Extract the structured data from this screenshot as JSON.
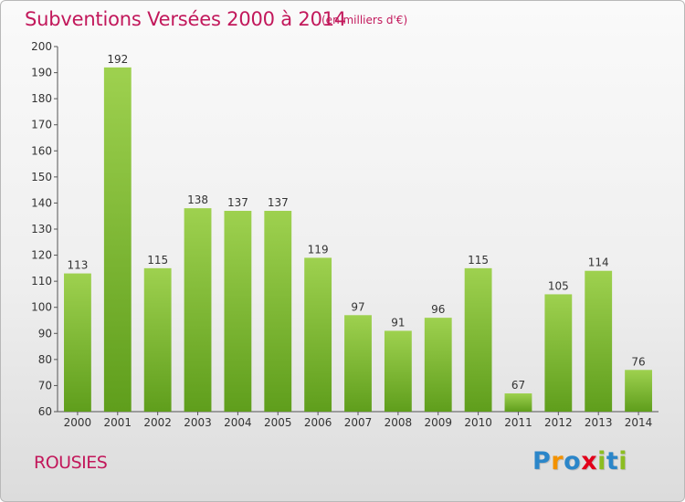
{
  "chart_data": {
    "type": "bar",
    "title": "Subventions Versées 2000 à 2014",
    "subtitle": "(en milliers d'€)",
    "categories": [
      "2000",
      "2001",
      "2002",
      "2003",
      "2004",
      "2005",
      "2006",
      "2007",
      "2008",
      "2009",
      "2010",
      "2011",
      "2012",
      "2013",
      "2014"
    ],
    "values": [
      113,
      192,
      115,
      138,
      137,
      137,
      119,
      97,
      91,
      96,
      115,
      67,
      105,
      114,
      76
    ],
    "ylim": [
      60,
      200
    ],
    "yticks": [
      60,
      70,
      80,
      90,
      100,
      110,
      120,
      130,
      140,
      150,
      160,
      170,
      180,
      190,
      200
    ],
    "grid": false,
    "bar_color": "#78b829"
  },
  "footer": {
    "label": "ROUSIES"
  },
  "logo": {
    "letters": [
      "P",
      "r",
      "o",
      "x",
      "i",
      "t",
      "i"
    ],
    "colors": [
      "#2b86c9",
      "#f39200",
      "#2b86c9",
      "#e2001a",
      "#8cbd21",
      "#2b86c9",
      "#8cbd21"
    ]
  }
}
